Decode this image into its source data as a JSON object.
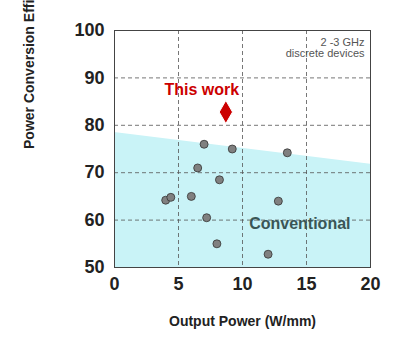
{
  "chart_data": {
    "type": "scatter",
    "x_label": "Output Power (W/mm)",
    "y_label": "Power Conversion Efficiency (%)",
    "note": "2 -3 GHz\ndiscrete devices",
    "xlim": [
      0,
      20
    ],
    "xticks": [
      0,
      5,
      10,
      15,
      20
    ],
    "ylim": [
      50,
      100
    ],
    "yticks": [
      50,
      60,
      70,
      80,
      90,
      100
    ],
    "grid": true,
    "boundary": {
      "x": [
        0,
        20
      ],
      "values": [
        78.5,
        71.8
      ],
      "color": "#c9f3f7"
    },
    "series": [
      {
        "name": "Conventional",
        "color": "#808080",
        "marker": "circle",
        "x": [
          4.0,
          4.4,
          6.0,
          6.5,
          7.0,
          7.2,
          8.0,
          8.2,
          9.2,
          12.0,
          12.8,
          13.5
        ],
        "values": [
          64.2,
          64.8,
          65.0,
          71.0,
          76.0,
          60.5,
          55.0,
          68.5,
          75.0,
          52.8,
          64.0,
          74.2
        ]
      },
      {
        "name": "This work",
        "color": "#cc0000",
        "marker": "diamond",
        "x": [
          8.7
        ],
        "values": [
          82.8
        ]
      }
    ]
  }
}
